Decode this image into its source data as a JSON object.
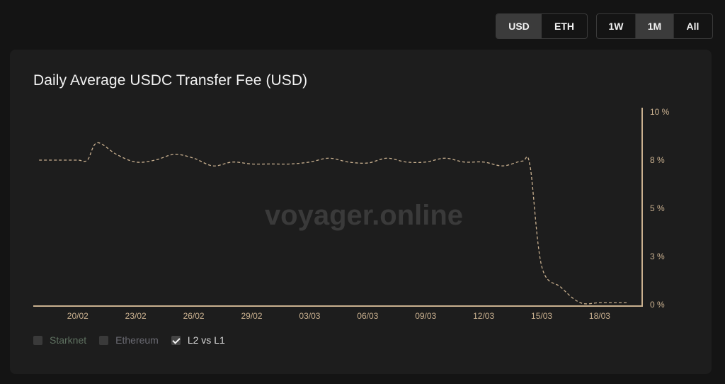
{
  "currency_toggle": {
    "options": [
      "USD",
      "ETH"
    ],
    "selected": "USD"
  },
  "range_toggle": {
    "options": [
      "1W",
      "1M",
      "All"
    ],
    "selected": "1M"
  },
  "card": {
    "title": "Daily Average USDC Transfer Fee (USD)",
    "watermark": "voyager.online"
  },
  "legend": [
    {
      "label": "Starknet",
      "checked": false,
      "color": "#5e7060"
    },
    {
      "label": "Ethereum",
      "checked": false,
      "color": "#6a6a72"
    },
    {
      "label": "L2 vs L1",
      "checked": true,
      "color": "#d8d8d8"
    }
  ],
  "colors": {
    "line": "#c9b08f",
    "axis": "#c9b08f",
    "tick_text": "#c9b08f"
  },
  "chart_data": {
    "type": "line",
    "title": "Daily Average USDC Transfer Fee (USD)",
    "x_tick_labels": [
      "20/02",
      "23/02",
      "26/02",
      "29/02",
      "03/03",
      "06/03",
      "09/03",
      "12/03",
      "15/03",
      "18/03"
    ],
    "y_tick_labels": [
      "0 %",
      "3 %",
      "5 %",
      "8 %",
      "10 %"
    ],
    "ylim": [
      0,
      10
    ],
    "grid": false,
    "y_axis_position": "right",
    "line_style": "dashed",
    "series": [
      {
        "values": [
          [
            18,
            7.5
          ],
          [
            19,
            7.5
          ],
          [
            20,
            7.5
          ],
          [
            20.5,
            7.5
          ],
          [
            21,
            8.4
          ],
          [
            22,
            7.8
          ],
          [
            23,
            7.4
          ],
          [
            24,
            7.5
          ],
          [
            25,
            7.8
          ],
          [
            26,
            7.6
          ],
          [
            27,
            7.2
          ],
          [
            28,
            7.4
          ],
          [
            29,
            7.3
          ],
          [
            30,
            7.3
          ],
          [
            31,
            7.3
          ],
          [
            32,
            7.4
          ],
          [
            33,
            7.6
          ],
          [
            34,
            7.4
          ],
          [
            35,
            7.35
          ],
          [
            36,
            7.6
          ],
          [
            37,
            7.4
          ],
          [
            38,
            7.4
          ],
          [
            39,
            7.6
          ],
          [
            40,
            7.4
          ],
          [
            41,
            7.4
          ],
          [
            42,
            7.2
          ],
          [
            43,
            7.45
          ],
          [
            43.4,
            7.2
          ],
          [
            44,
            2.0
          ],
          [
            45,
            0.9
          ],
          [
            46,
            0.1
          ],
          [
            47,
            0.1
          ],
          [
            48,
            0.1
          ],
          [
            48.4,
            0.1
          ]
        ]
      }
    ]
  }
}
